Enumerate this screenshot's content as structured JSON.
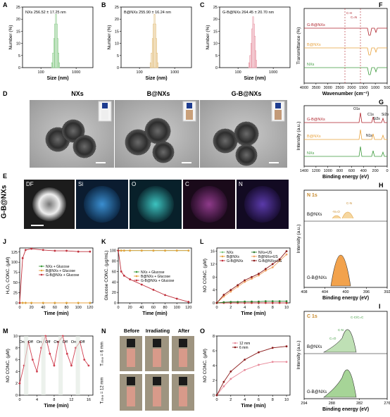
{
  "panels": {
    "A": {
      "letter": "A",
      "annot": "NXs  256.52 ± 17.25 nm",
      "ylabel": "Number (%)",
      "xlabel": "Size (nm)",
      "yticks": [
        "0",
        "5",
        "10",
        "15",
        "20",
        "25"
      ],
      "xticks": [
        "100",
        "1000"
      ],
      "color": "#7cc47c"
    },
    "B": {
      "letter": "B",
      "annot": "B@NXs  255.90 ± 16.24 nm",
      "ylabel": "Number (%)",
      "xlabel": "Size (nm)",
      "yticks": [
        "0",
        "5",
        "10",
        "15",
        "20",
        "25"
      ],
      "xticks": [
        "100",
        "1000"
      ],
      "color": "#e0b870"
    },
    "C": {
      "letter": "C",
      "annot": "G-B@NXs  264.45 ± 20.70 nm",
      "ylabel": "Number (%)",
      "xlabel": "Size (nm)",
      "yticks": [
        "0",
        "5",
        "10",
        "15",
        "20",
        "25"
      ],
      "xticks": [
        "100",
        "1000"
      ],
      "color": "#e58a9a"
    },
    "D": {
      "letter": "D",
      "titles": [
        "NXs",
        "B@NXs",
        "G-B@NXs"
      ]
    },
    "E": {
      "letter": "E",
      "side_label": "G-B@NXs",
      "maps": [
        "DF",
        "Si",
        "O",
        "C",
        "N"
      ]
    },
    "F": {
      "letter": "F",
      "ylabel": "Transmittance (%)",
      "xlabel": "Wavenumber (cm⁻¹)",
      "xticks": [
        "4000",
        "3500",
        "3000",
        "2500",
        "2000",
        "1500",
        "1000",
        "500"
      ],
      "series": [
        "G-B@NXs",
        "B@NXs",
        "NXs"
      ],
      "annots": [
        "C-H",
        "C=N"
      ]
    },
    "G": {
      "letter": "G",
      "ylabel": "Intensity (a.u.)",
      "xlabel": "Binding energy (eV)",
      "xticks": [
        "1400",
        "1200",
        "1000",
        "800",
        "600",
        "400",
        "200",
        "0"
      ],
      "series": [
        "G-B@NXs",
        "B@NXs",
        "NXs"
      ],
      "annots": [
        "O1s",
        "C1s",
        "Si2s",
        "Si2p",
        "N1s"
      ]
    },
    "H": {
      "letter": "H",
      "title": "N 1s",
      "ylabel": "Intensity (a.u.)",
      "xlabel": "Binding energy (eV)",
      "xticks": [
        "408",
        "404",
        "400",
        "396",
        "392"
      ],
      "series": [
        "B@NXs",
        "G-B@NXs"
      ],
      "annots": [
        "-N=O",
        "C-N"
      ]
    },
    "I": {
      "letter": "I",
      "title": "C 1s",
      "ylabel": "Intensity (a.u.)",
      "xlabel": "Binding energy (eV)",
      "xticks": [
        "294",
        "288",
        "282",
        "276"
      ],
      "series": [
        "B@NXs",
        "G-B@NXs"
      ],
      "annots": [
        "C-C/C=C",
        "C-N",
        "C=O"
      ]
    },
    "J": {
      "letter": "J",
      "ylabel": "H₂O₂ CONC. (μM)",
      "xlabel": "Time (min)",
      "xticks": [
        "0",
        "20",
        "40",
        "60",
        "80",
        "100",
        "120"
      ],
      "yticks": [
        "0",
        "25",
        "50",
        "75",
        "100",
        "125"
      ],
      "legend": [
        "NXs + Glucose",
        "B@NXs + Glucose",
        "G-B@NXs + Glucose"
      ]
    },
    "K": {
      "letter": "K",
      "ylabel": "Glucose CONC. (μg/mL)",
      "xlabel": "Time (min)",
      "xticks": [
        "0",
        "20",
        "40",
        "60",
        "80",
        "100",
        "120"
      ],
      "yticks": [
        "0",
        "20",
        "40",
        "60",
        "80",
        "100"
      ],
      "legend": [
        "NXs + Glucose",
        "B@NXs + Glucose",
        "G-B@NXs + Glucose"
      ]
    },
    "L": {
      "letter": "L",
      "ylabel": "NO CONC. (μM)",
      "xlabel": "Time (min)",
      "xticks": [
        "0",
        "2",
        "4",
        "6",
        "8",
        "10"
      ],
      "yticks": [
        "0",
        "4",
        "8",
        "12",
        "16"
      ],
      "legend": [
        "NXs",
        "B@NXs",
        "G-B@NXs",
        "NXs+US",
        "B@NXs+US",
        "G-B@NXs+US"
      ]
    },
    "M": {
      "letter": "M",
      "ylabel": "NO CONC. (μM)",
      "xlabel": "Time (min)",
      "xticks": [
        "0",
        "4",
        "8",
        "12",
        "16"
      ],
      "yticks": [
        "0",
        "2",
        "4",
        "6",
        "8",
        "10"
      ],
      "onoff": [
        "On",
        "Off",
        "On",
        "Off",
        "On",
        "Off",
        "On",
        "Off"
      ]
    },
    "N": {
      "letter": "N",
      "cols": [
        "Before",
        "Irradiating",
        "After"
      ],
      "rows": [
        "Tₛₗᵢₖₑ = 6 mm",
        "Tₛₗᵢₖₑ = 12 mm"
      ]
    },
    "O": {
      "letter": "O",
      "ylabel": "NO CONC. (μM)",
      "xlabel": "Time (min)",
      "xticks": [
        "0",
        "2",
        "4",
        "6",
        "8",
        "10"
      ],
      "yticks": [
        "0",
        "2",
        "4",
        "6",
        "8"
      ],
      "legend": [
        "12 mm",
        "6 mm"
      ]
    }
  },
  "chart_data": [
    {
      "type": "bar",
      "id": "A",
      "x": [
        200,
        215,
        230,
        245,
        260,
        275,
        290,
        305,
        320
      ],
      "values": [
        2,
        6,
        12,
        18,
        22,
        18,
        12,
        6,
        2
      ]
    },
    {
      "type": "bar",
      "id": "B",
      "x": [
        200,
        215,
        230,
        245,
        260,
        275,
        290,
        305,
        320
      ],
      "values": [
        2,
        6,
        12,
        18,
        22,
        18,
        12,
        6,
        2
      ]
    },
    {
      "type": "bar",
      "id": "C",
      "x": [
        200,
        215,
        230,
        245,
        260,
        275,
        290,
        305,
        320
      ],
      "values": [
        2,
        5,
        10,
        16,
        21,
        18,
        13,
        7,
        3
      ]
    },
    {
      "type": "line",
      "id": "J",
      "series": [
        {
          "name": "NXs + Glucose",
          "color": "#3c9a3c",
          "x": [
            0,
            5,
            10,
            20,
            40,
            60,
            80,
            100,
            120
          ],
          "values": [
            0,
            0,
            0,
            0,
            0,
            0,
            0,
            0,
            0
          ]
        },
        {
          "name": "B@NXs + Glucose",
          "color": "#e8a23c",
          "x": [
            0,
            5,
            10,
            20,
            40,
            60,
            80,
            100,
            120
          ],
          "values": [
            0,
            0,
            0,
            0,
            0,
            0,
            0,
            0,
            0
          ]
        },
        {
          "name": "G-B@NXs + Glucose",
          "color": "#c0303c",
          "x": [
            0,
            5,
            10,
            20,
            40,
            60,
            80,
            100,
            120
          ],
          "values": [
            0,
            110,
            130,
            133,
            130,
            128,
            128,
            126,
            126
          ]
        }
      ]
    },
    {
      "type": "line",
      "id": "K",
      "series": [
        {
          "name": "NXs + Glucose",
          "color": "#3c9a3c",
          "x": [
            0,
            5,
            10,
            20,
            40,
            60,
            80,
            100,
            120
          ],
          "values": [
            100,
            100,
            100,
            100,
            100,
            100,
            100,
            100,
            100
          ]
        },
        {
          "name": "B@NXs + Glucose",
          "color": "#e8a23c",
          "x": [
            0,
            5,
            10,
            20,
            40,
            60,
            80,
            100,
            120
          ],
          "values": [
            100,
            100,
            100,
            100,
            100,
            100,
            100,
            100,
            100
          ]
        },
        {
          "name": "G-B@NXs + Glucose",
          "color": "#c0303c",
          "x": [
            0,
            5,
            10,
            20,
            40,
            60,
            80,
            100,
            120
          ],
          "values": [
            100,
            60,
            52,
            45,
            35,
            25,
            15,
            8,
            2
          ]
        }
      ]
    },
    {
      "type": "line",
      "id": "L",
      "series": [
        {
          "name": "NXs",
          "color": "#7cc47c",
          "x": [
            0,
            1,
            2,
            3,
            4,
            5,
            6,
            7,
            8,
            9,
            10
          ],
          "values": [
            0,
            0,
            0,
            0,
            0,
            0,
            0,
            0,
            0,
            0,
            0
          ]
        },
        {
          "name": "B@NXs",
          "color": "#e8a23c",
          "x": [
            0,
            1,
            2,
            3,
            4,
            5,
            6,
            7,
            8,
            9,
            10
          ],
          "values": [
            0,
            0,
            0,
            0,
            0,
            0,
            0,
            0,
            0,
            0,
            0
          ]
        },
        {
          "name": "G-B@NXs",
          "color": "#c0303c",
          "x": [
            0,
            1,
            2,
            3,
            4,
            5,
            6,
            7,
            8,
            9,
            10
          ],
          "values": [
            0,
            0,
            0,
            0,
            0,
            0,
            0,
            0,
            0,
            0,
            0
          ]
        },
        {
          "name": "NXs+US",
          "color": "#2e7d2e",
          "x": [
            0,
            1,
            2,
            3,
            4,
            5,
            6,
            7,
            8,
            9,
            10
          ],
          "values": [
            0,
            0.2,
            0.3,
            0.3,
            0.4,
            0.4,
            0.4,
            0.5,
            0.5,
            0.5,
            0.5
          ]
        },
        {
          "name": "B@NXs+US",
          "color": "#f0a060",
          "x": [
            0,
            1,
            2,
            3,
            4,
            5,
            6,
            7,
            8,
            9,
            10
          ],
          "values": [
            0,
            2,
            3.5,
            5,
            6.5,
            7.5,
            8.5,
            10,
            11,
            13,
            15
          ]
        },
        {
          "name": "G-B@NXs+US",
          "color": "#8b1a1a",
          "x": [
            0,
            1,
            2,
            3,
            4,
            5,
            6,
            7,
            8,
            9,
            10
          ],
          "values": [
            0,
            2.5,
            4,
            5.5,
            7,
            8,
            9,
            10.5,
            12,
            13.5,
            16
          ]
        }
      ]
    },
    {
      "type": "line",
      "id": "M",
      "series": [
        {
          "name": "NO",
          "color": "#d04050",
          "x": [
            0,
            1,
            2,
            3,
            4,
            5,
            6,
            7,
            8,
            9,
            10,
            11,
            12,
            13,
            14,
            15,
            16
          ],
          "values": [
            2,
            5,
            9,
            6,
            4,
            8,
            10,
            7,
            5,
            9,
            10,
            7,
            5,
            8,
            9,
            6,
            5
          ]
        }
      ]
    },
    {
      "type": "line",
      "id": "O",
      "series": [
        {
          "name": "12 mm",
          "color": "#e88a9a",
          "x": [
            0,
            1,
            2,
            4,
            6,
            8,
            10
          ],
          "values": [
            0,
            1.2,
            2.2,
            3.4,
            4.1,
            4.5,
            4.5
          ]
        },
        {
          "name": "6 mm",
          "color": "#8b1a1a",
          "x": [
            0,
            1,
            2,
            4,
            6,
            8,
            10
          ],
          "values": [
            0,
            1.8,
            3.2,
            4.8,
            5.8,
            6.4,
            6.6
          ]
        }
      ]
    }
  ]
}
